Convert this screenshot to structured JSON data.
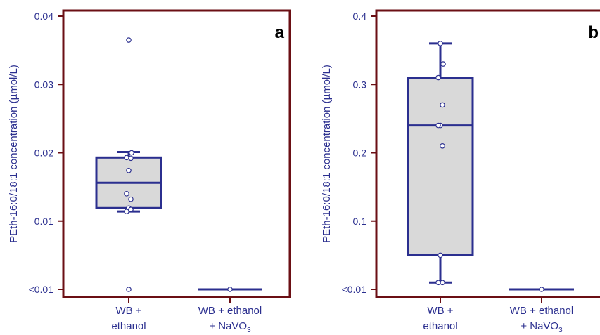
{
  "colors": {
    "frame": "#6b0f14",
    "navy": "#2b2f8f",
    "box_fill": "#d9d9d9",
    "point_fill": "#ffffff"
  },
  "chart_data": [
    {
      "type": "box",
      "panel_label": "a",
      "ylabel": "PEth-16:0/18:1 concentration (µmol/L)",
      "y_ticks": [
        "<0.01",
        "0.01",
        "0.02",
        "0.03",
        "0.04"
      ],
      "y_tick_values": [
        0.0,
        0.01,
        0.02,
        0.03,
        0.04
      ],
      "ylim": [
        0.0,
        0.04
      ],
      "categories": [
        {
          "line1": "WB +",
          "line2": "ethanol",
          "line2_sub": ""
        },
        {
          "line1": "WB + ethanol",
          "line2": "+ NaVO",
          "line2_sub": "3"
        }
      ],
      "boxes": [
        {
          "whisker_low": 0.0114,
          "q1": 0.0119,
          "median": 0.0156,
          "q3": 0.0193,
          "whisker_high": 0.0201
        },
        {
          "whisker_low": 0.0,
          "q1": 0.0,
          "median": 0.0,
          "q3": 0.0,
          "whisker_high": 0.0
        }
      ],
      "points": [
        [
          0.0365,
          0.02,
          0.0193,
          0.0192,
          0.0174,
          0.014,
          0.0132,
          0.0119,
          0.0117,
          0.0114,
          0.0
        ],
        [
          0.0
        ]
      ]
    },
    {
      "type": "box",
      "panel_label": "b",
      "ylabel": "PEth-16:0/18:1 concentration (µmol/L)",
      "y_ticks": [
        "<0.01",
        "0.1",
        "0.2",
        "0.3",
        "0.4"
      ],
      "y_tick_values": [
        0.0,
        0.1,
        0.2,
        0.3,
        0.4
      ],
      "ylim": [
        0.0,
        0.4
      ],
      "categories": [
        {
          "line1": "WB +",
          "line2": "ethanol",
          "line2_sub": ""
        },
        {
          "line1": "WB + ethanol",
          "line2": "+ NaVO",
          "line2_sub": "3"
        }
      ],
      "boxes": [
        {
          "whisker_low": 0.01,
          "q1": 0.05,
          "median": 0.24,
          "q3": 0.31,
          "whisker_high": 0.36
        },
        {
          "whisker_low": 0.0,
          "q1": 0.0,
          "median": 0.0,
          "q3": 0.0,
          "whisker_high": 0.0
        }
      ],
      "points": [
        [
          0.36,
          0.33,
          0.31,
          0.27,
          0.24,
          0.24,
          0.21,
          0.05,
          0.01,
          0.01
        ],
        [
          0.0
        ]
      ]
    }
  ]
}
